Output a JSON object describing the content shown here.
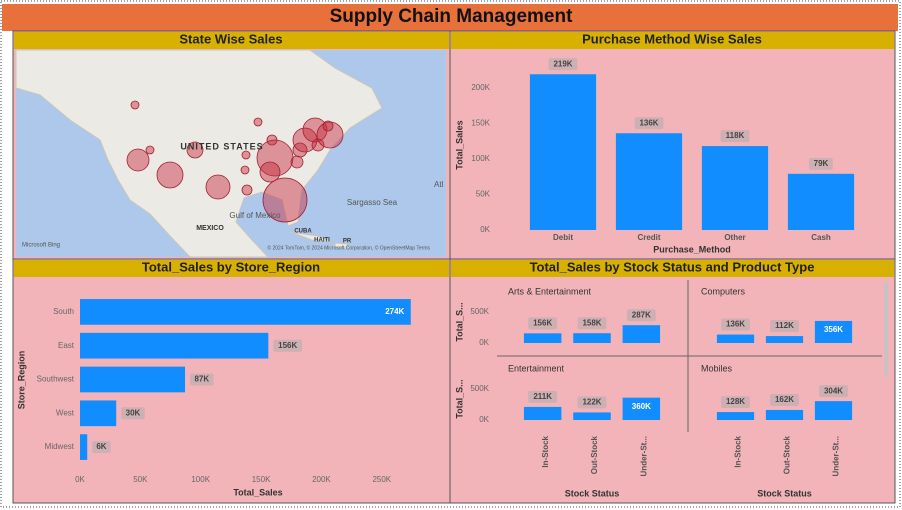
{
  "header": {
    "title": "Supply Chain Management"
  },
  "chart_data": [
    {
      "type": "map",
      "title": "State Wise Sales",
      "labels": [
        "UNITED STATES",
        "MEXICO",
        "Gulf of Mexico",
        "Sargasso Sea",
        "CUBA",
        "HAITI",
        "PR",
        "Atl"
      ],
      "logo": "Microsoft Bing",
      "attribution": "© 2024 TomTom, © 2024 Microsoft Corporation, © OpenStreetMap  Terms"
    },
    {
      "type": "bar",
      "title": "Purchase Method Wise Sales",
      "xlabel": "Purchase_Method",
      "ylabel": "Total_Sales",
      "categories": [
        "Debit",
        "Credit",
        "Other",
        "Cash"
      ],
      "values": [
        219000,
        136000,
        118000,
        79000
      ],
      "value_labels": [
        "219K",
        "136K",
        "118K",
        "79K"
      ],
      "color": "#118dff",
      "ylim": [
        0,
        232000
      ],
      "yticks": [
        {
          "value": 0,
          "label": "0K"
        },
        {
          "value": 50000,
          "label": "50K"
        },
        {
          "value": 100000,
          "label": "100K"
        },
        {
          "value": 150000,
          "label": "150K"
        },
        {
          "value": 200000,
          "label": "200K"
        }
      ]
    },
    {
      "type": "hbar",
      "title": "Total_Sales by Store_Region",
      "xlabel": "Total_Sales",
      "ylabel": "Store_Region",
      "categories": [
        "South",
        "East",
        "Southwest",
        "West",
        "Midwest"
      ],
      "values": [
        274000,
        156000,
        87000,
        30000,
        6000
      ],
      "value_labels": [
        "274K",
        "156K",
        "87K",
        "30K",
        "6K"
      ],
      "color": "#118dff",
      "xlim": [
        0,
        280000
      ],
      "xticks": [
        {
          "value": 0,
          "label": "0K"
        },
        {
          "value": 50000,
          "label": "50K"
        },
        {
          "value": 100000,
          "label": "100K"
        },
        {
          "value": 150000,
          "label": "150K"
        },
        {
          "value": 200000,
          "label": "200K"
        },
        {
          "value": 250000,
          "label": "250K"
        }
      ]
    },
    {
      "type": "bar_grid",
      "title": "Total_Sales by Stock Status and Product Type",
      "xlabel": "Stock Status",
      "ylabel": "Total_S...",
      "categories": [
        "In-Stock",
        "Out-Stock",
        "Under-St..."
      ],
      "panels": [
        {
          "title": "Arts & Entertainment",
          "values": [
            156000,
            158000,
            287000
          ],
          "value_labels": [
            "156K",
            "158K",
            "287K"
          ]
        },
        {
          "title": "Computers",
          "values": [
            136000,
            112000,
            356000
          ],
          "value_labels": [
            "136K",
            "112K",
            "356K"
          ]
        },
        {
          "title": "Entertainment",
          "values": [
            211000,
            122000,
            360000
          ],
          "value_labels": [
            "211K",
            "122K",
            "360K"
          ]
        },
        {
          "title": "Mobiles",
          "values": [
            128000,
            162000,
            304000
          ],
          "value_labels": [
            "128K",
            "162K",
            "304K"
          ]
        }
      ],
      "color": "#118dff",
      "ylim": [
        0,
        700000
      ],
      "yticks": [
        {
          "value": 0,
          "label": "0K"
        },
        {
          "value": 500000,
          "label": "500K"
        }
      ]
    }
  ]
}
